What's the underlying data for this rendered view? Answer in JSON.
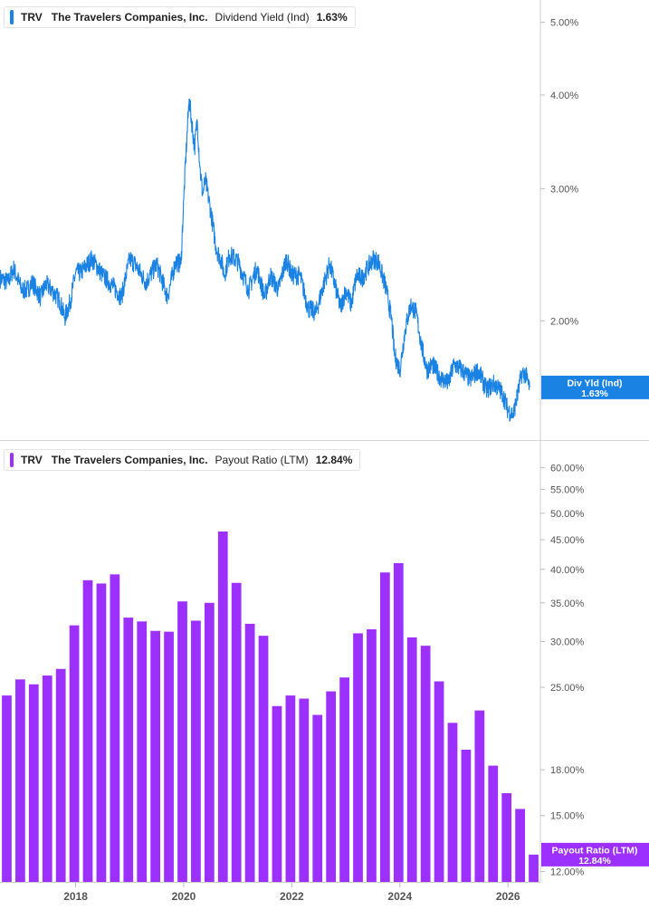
{
  "colors": {
    "yield": "#1a82e2",
    "payout": "#9b30ff",
    "axis": "#cfcfcf",
    "text": "#555555"
  },
  "chart_data": [
    {
      "type": "line",
      "legend": {
        "ticker": "TRV",
        "company": "The Travelers Companies, Inc.",
        "metric": "Dividend Yield (Ind)",
        "value": "1.63%"
      },
      "flag": {
        "line1": "Div Yld (Ind)",
        "line2": "1.63%",
        "value": 1.63
      },
      "yscale": "log",
      "ylim": [
        1.45,
        5.15
      ],
      "y_ticks": [
        {
          "value": 2.0,
          "label": "2.00%"
        },
        {
          "value": 3.0,
          "label": "3.00%"
        },
        {
          "value": 4.0,
          "label": "4.00%"
        },
        {
          "value": 5.0,
          "label": "5.00%"
        }
      ],
      "xlim": [
        2016.6,
        2026.6
      ],
      "x": [
        2016.6,
        2016.75,
        2016.85,
        2017.0,
        2017.1,
        2017.2,
        2017.35,
        2017.45,
        2017.6,
        2017.7,
        2017.8,
        2017.9,
        2018.0,
        2018.1,
        2018.3,
        2018.5,
        2018.7,
        2018.85,
        2019.0,
        2019.1,
        2019.3,
        2019.5,
        2019.7,
        2019.85,
        2019.95,
        2020.0,
        2020.1,
        2020.2,
        2020.25,
        2020.3,
        2020.35,
        2020.4,
        2020.5,
        2020.6,
        2020.7,
        2020.75,
        2020.85,
        2021.0,
        2021.2,
        2021.35,
        2021.5,
        2021.6,
        2021.75,
        2021.9,
        2022.0,
        2022.15,
        2022.3,
        2022.45,
        2022.6,
        2022.7,
        2022.9,
        2023.0,
        2023.1,
        2023.2,
        2023.3,
        2023.4,
        2023.5,
        2023.6,
        2023.75,
        2023.85,
        2023.9,
        2024.0,
        2024.1,
        2024.2,
        2024.3,
        2024.4,
        2024.5,
        2024.6,
        2024.75,
        2024.9,
        2025.0,
        2025.15,
        2025.3,
        2025.45,
        2025.6,
        2025.75,
        2025.9,
        2026.0,
        2026.1,
        2026.2,
        2026.25,
        2026.32,
        2026.4
      ],
      "values": [
        2.28,
        2.25,
        2.35,
        2.2,
        2.2,
        2.25,
        2.15,
        2.24,
        2.18,
        2.13,
        2.02,
        2.12,
        2.32,
        2.32,
        2.42,
        2.3,
        2.22,
        2.15,
        2.42,
        2.38,
        2.25,
        2.38,
        2.15,
        2.4,
        2.38,
        2.9,
        3.95,
        3.4,
        3.7,
        3.2,
        2.95,
        3.08,
        2.8,
        2.5,
        2.4,
        2.3,
        2.45,
        2.4,
        2.2,
        2.35,
        2.15,
        2.3,
        2.2,
        2.42,
        2.3,
        2.3,
        2.08,
        2.05,
        2.25,
        2.38,
        2.08,
        2.2,
        2.1,
        2.3,
        2.28,
        2.35,
        2.42,
        2.4,
        2.2,
        2.0,
        1.8,
        1.72,
        1.95,
        2.1,
        2.05,
        1.85,
        1.72,
        1.75,
        1.68,
        1.65,
        1.75,
        1.72,
        1.67,
        1.72,
        1.62,
        1.65,
        1.6,
        1.52,
        1.5,
        1.62,
        1.7,
        1.7,
        1.63
      ]
    },
    {
      "type": "bar",
      "legend": {
        "ticker": "TRV",
        "company": "The Travelers Companies, Inc.",
        "metric": "Payout Ratio (LTM)",
        "value": "12.84%"
      },
      "flag": {
        "line1": "Payout Ratio (LTM)",
        "line2": "12.84%",
        "value": 12.84
      },
      "yscale": "log",
      "ylim": [
        11.6,
        62.5
      ],
      "y_ticks": [
        {
          "value": 12,
          "label": "12.00%"
        },
        {
          "value": 15,
          "label": "15.00%"
        },
        {
          "value": 18,
          "label": "18.00%"
        },
        {
          "value": 25,
          "label": "25.00%"
        },
        {
          "value": 30,
          "label": "30.00%"
        },
        {
          "value": 35,
          "label": "35.00%"
        },
        {
          "value": 40,
          "label": "40.00%"
        },
        {
          "value": 45,
          "label": "45.00%"
        },
        {
          "value": 50,
          "label": "50.00%"
        },
        {
          "value": 55,
          "label": "55.00%"
        },
        {
          "value": 60,
          "label": "60.00%"
        }
      ],
      "xlim": [
        2016.6,
        2026.6
      ],
      "x": [
        2016.6,
        2016.85,
        2017.1,
        2017.35,
        2017.6,
        2017.85,
        2018.1,
        2018.35,
        2018.6,
        2018.85,
        2019.1,
        2019.35,
        2019.6,
        2019.85,
        2020.1,
        2020.35,
        2020.6,
        2020.85,
        2021.1,
        2021.35,
        2021.6,
        2021.85,
        2022.1,
        2022.35,
        2022.6,
        2022.85,
        2023.1,
        2023.35,
        2023.6,
        2023.85,
        2024.1,
        2024.35,
        2024.6,
        2024.85,
        2025.1,
        2025.35,
        2025.6,
        2025.85,
        2026.1,
        2026.35
      ],
      "values": [
        24.2,
        25.8,
        25.3,
        26.2,
        26.9,
        32.0,
        38.3,
        37.8,
        39.2,
        33.0,
        32.5,
        31.3,
        31.2,
        35.2,
        32.6,
        35.0,
        46.5,
        37.9,
        32.2,
        30.7,
        23.2,
        24.2,
        23.9,
        22.4,
        24.6,
        26.0,
        31.0,
        31.5,
        39.5,
        41.0,
        30.5,
        29.5,
        25.6,
        21.7,
        19.5,
        22.8,
        18.3,
        16.4,
        15.4,
        12.84
      ]
    }
  ],
  "x_axis": {
    "ticks": [
      {
        "value": 2018,
        "label": "2018"
      },
      {
        "value": 2020,
        "label": "2020"
      },
      {
        "value": 2022,
        "label": "2022"
      },
      {
        "value": 2024,
        "label": "2024"
      },
      {
        "value": 2026,
        "label": "2026"
      }
    ]
  }
}
